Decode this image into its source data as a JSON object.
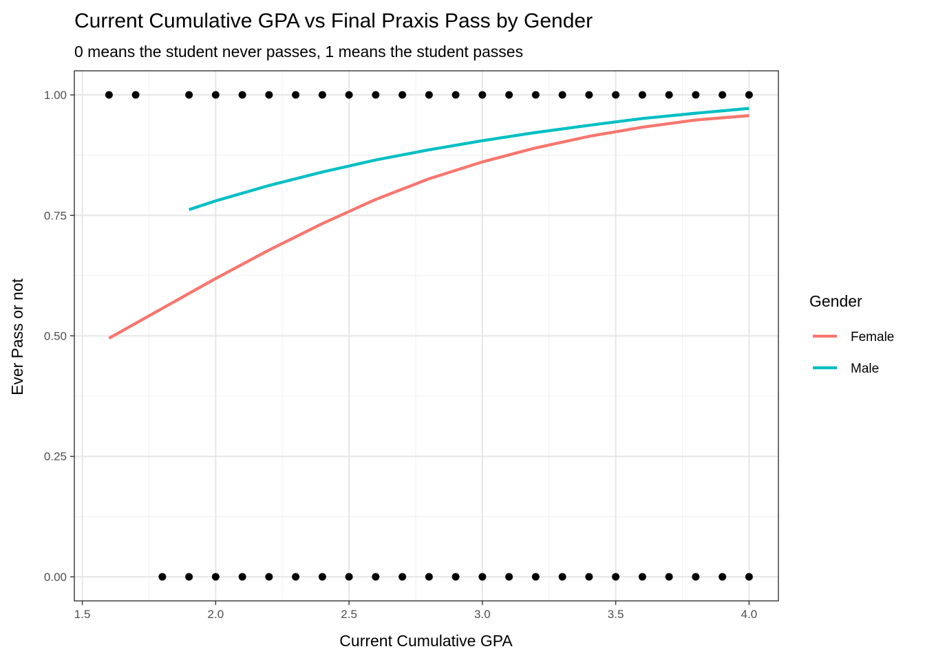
{
  "chart_data": {
    "type": "scatter",
    "title": "Current Cumulative GPA vs Final Praxis Pass by Gender",
    "subtitle": "0 means the student never passes, 1 means the student passes",
    "xlabel": "Current Cumulative GPA",
    "ylabel": "Ever Pass or not",
    "xlim": [
      1.47,
      4.11
    ],
    "ylim": [
      -0.05,
      1.05
    ],
    "x_ticks": [
      1.5,
      2.0,
      2.5,
      3.0,
      3.5,
      4.0
    ],
    "x_tick_labels": [
      "1.5",
      "2.0",
      "2.5",
      "3.0",
      "3.5",
      "4.0"
    ],
    "y_ticks": [
      0,
      0.25,
      0.5,
      0.75,
      1.0
    ],
    "y_tick_labels": [
      "0.00",
      "0.25",
      "0.50",
      "0.75",
      "1.00"
    ],
    "grid": true,
    "points": {
      "color": "#000000",
      "pass_1_x": [
        1.6,
        1.7,
        1.9,
        2.0,
        2.1,
        2.2,
        2.3,
        2.4,
        2.5,
        2.6,
        2.7,
        2.8,
        2.9,
        3.0,
        3.1,
        3.2,
        3.3,
        3.4,
        3.5,
        3.6,
        3.7,
        3.8,
        3.9,
        4.0
      ],
      "pass_0_x": [
        1.8,
        1.9,
        2.0,
        2.1,
        2.2,
        2.3,
        2.4,
        2.5,
        2.6,
        2.7,
        2.8,
        2.9,
        3.0,
        3.1,
        3.2,
        3.3,
        3.4,
        3.5,
        3.6,
        3.7,
        3.8,
        3.9,
        4.0
      ]
    },
    "series": [
      {
        "name": "Female",
        "color": "#F8766D",
        "x": [
          1.6,
          1.8,
          2.0,
          2.2,
          2.4,
          2.6,
          2.8,
          3.0,
          3.2,
          3.4,
          3.6,
          3.8,
          4.0
        ],
        "y": [
          0.495,
          0.557,
          0.619,
          0.678,
          0.733,
          0.783,
          0.826,
          0.861,
          0.89,
          0.914,
          0.933,
          0.948,
          0.957
        ]
      },
      {
        "name": "Male",
        "color": "#00BFC4",
        "x": [
          1.9,
          2.0,
          2.2,
          2.4,
          2.6,
          2.8,
          3.0,
          3.2,
          3.4,
          3.6,
          3.8,
          4.0
        ],
        "y": [
          0.762,
          0.78,
          0.812,
          0.84,
          0.865,
          0.886,
          0.905,
          0.922,
          0.937,
          0.951,
          0.962,
          0.972
        ]
      }
    ],
    "legend": {
      "title": "Gender",
      "position": "right"
    }
  }
}
